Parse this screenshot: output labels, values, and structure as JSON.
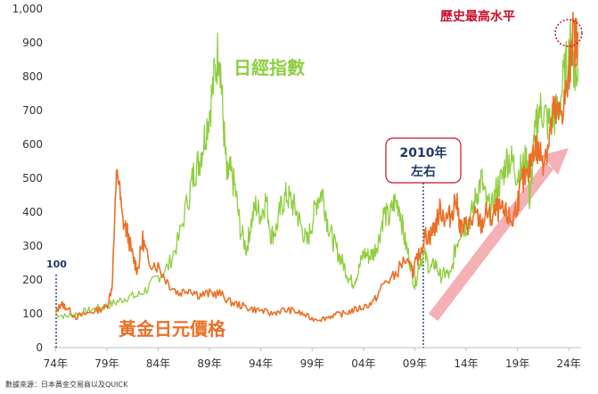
{
  "chart_data": {
    "type": "line",
    "y_ticks": [
      "0",
      "100",
      "200",
      "300",
      "400",
      "500",
      "600",
      "700",
      "800",
      "900",
      "1,000"
    ],
    "ylim": [
      0,
      1000
    ],
    "x_ticks": [
      {
        "label": "74年",
        "year": 1974
      },
      {
        "label": "79年",
        "year": 1979
      },
      {
        "label": "84年",
        "year": 1984
      },
      {
        "label": "89年",
        "year": 1989
      },
      {
        "label": "94年",
        "year": 1994
      },
      {
        "label": "99年",
        "year": 1999
      },
      {
        "label": "04年",
        "year": 2004
      },
      {
        "label": "09年",
        "year": 2009
      },
      {
        "label": "14年",
        "year": 2014
      },
      {
        "label": "19年",
        "year": 2019
      },
      {
        "label": "24年",
        "year": 2024
      }
    ],
    "xlim": [
      1973.8,
      2025.2
    ],
    "grid": false,
    "series": [
      {
        "name": "日經指數",
        "color": "#8fce3f",
        "points": [
          [
            1974.0,
            100
          ],
          [
            1975.0,
            92
          ],
          [
            1976.0,
            100
          ],
          [
            1977.0,
            108
          ],
          [
            1978.0,
            115
          ],
          [
            1979.0,
            124
          ],
          [
            1980.0,
            135
          ],
          [
            1981.0,
            150
          ],
          [
            1982.0,
            153
          ],
          [
            1983.0,
            175
          ],
          [
            1984.0,
            210
          ],
          [
            1985.0,
            240
          ],
          [
            1986.0,
            320
          ],
          [
            1987.0,
            450
          ],
          [
            1987.5,
            520
          ],
          [
            1988.0,
            550
          ],
          [
            1988.5,
            620
          ],
          [
            1989.0,
            700
          ],
          [
            1989.5,
            800
          ],
          [
            1989.95,
            900
          ],
          [
            1990.3,
            690
          ],
          [
            1990.7,
            500
          ],
          [
            1991.0,
            520
          ],
          [
            1991.5,
            470
          ],
          [
            1992.0,
            350
          ],
          [
            1992.6,
            290
          ],
          [
            1993.0,
            360
          ],
          [
            1993.5,
            420
          ],
          [
            1994.0,
            390
          ],
          [
            1994.5,
            440
          ],
          [
            1995.0,
            330
          ],
          [
            1995.5,
            350
          ],
          [
            1996.0,
            420
          ],
          [
            1996.5,
            450
          ],
          [
            1997.0,
            430
          ],
          [
            1997.5,
            400
          ],
          [
            1998.0,
            350
          ],
          [
            1998.5,
            310
          ],
          [
            1999.0,
            370
          ],
          [
            1999.5,
            440
          ],
          [
            2000.0,
            460
          ],
          [
            2000.5,
            370
          ],
          [
            2001.0,
            320
          ],
          [
            2001.5,
            280
          ],
          [
            2002.0,
            250
          ],
          [
            2002.5,
            210
          ],
          [
            2003.0,
            190
          ],
          [
            2003.5,
            225
          ],
          [
            2004.0,
            280
          ],
          [
            2004.5,
            270
          ],
          [
            2005.0,
            280
          ],
          [
            2005.5,
            320
          ],
          [
            2006.0,
            400
          ],
          [
            2006.5,
            380
          ],
          [
            2007.0,
            430
          ],
          [
            2007.5,
            420
          ],
          [
            2008.0,
            320
          ],
          [
            2008.5,
            260
          ],
          [
            2009.0,
            180
          ],
          [
            2009.5,
            260
          ],
          [
            2010.0,
            270
          ],
          [
            2010.5,
            230
          ],
          [
            2011.0,
            250
          ],
          [
            2011.5,
            210
          ],
          [
            2012.0,
            220
          ],
          [
            2012.5,
            210
          ],
          [
            2013.0,
            300
          ],
          [
            2013.5,
            350
          ],
          [
            2014.0,
            360
          ],
          [
            2014.5,
            390
          ],
          [
            2015.0,
            450
          ],
          [
            2015.5,
            500
          ],
          [
            2016.0,
            420
          ],
          [
            2016.5,
            410
          ],
          [
            2017.0,
            470
          ],
          [
            2017.5,
            500
          ],
          [
            2018.0,
            560
          ],
          [
            2018.5,
            550
          ],
          [
            2019.0,
            510
          ],
          [
            2019.5,
            530
          ],
          [
            2020.0,
            560
          ],
          [
            2020.2,
            420
          ],
          [
            2020.5,
            560
          ],
          [
            2021.0,
            700
          ],
          [
            2021.5,
            700
          ],
          [
            2022.0,
            660
          ],
          [
            2022.5,
            680
          ],
          [
            2023.0,
            700
          ],
          [
            2023.5,
            790
          ],
          [
            2024.0,
            860
          ],
          [
            2024.3,
            920
          ],
          [
            2024.6,
            800
          ],
          [
            2024.9,
            830
          ]
        ]
      },
      {
        "name": "黃金日元價格",
        "color": "#e97026",
        "points": [
          [
            1974.0,
            100
          ],
          [
            1974.5,
            130
          ],
          [
            1975.0,
            120
          ],
          [
            1976.0,
            90
          ],
          [
            1977.0,
            100
          ],
          [
            1978.0,
            110
          ],
          [
            1979.0,
            120
          ],
          [
            1979.5,
            180
          ],
          [
            1980.0,
            540
          ],
          [
            1980.5,
            380
          ],
          [
            1981.0,
            340
          ],
          [
            1981.5,
            270
          ],
          [
            1982.0,
            230
          ],
          [
            1982.5,
            320
          ],
          [
            1983.0,
            260
          ],
          [
            1984.0,
            240
          ],
          [
            1985.0,
            190
          ],
          [
            1986.0,
            160
          ],
          [
            1987.0,
            175
          ],
          [
            1988.0,
            155
          ],
          [
            1989.0,
            160
          ],
          [
            1990.0,
            160
          ],
          [
            1991.0,
            135
          ],
          [
            1992.0,
            125
          ],
          [
            1993.0,
            115
          ],
          [
            1994.0,
            110
          ],
          [
            1995.0,
            100
          ],
          [
            1996.0,
            110
          ],
          [
            1997.0,
            110
          ],
          [
            1998.0,
            100
          ],
          [
            1999.0,
            85
          ],
          [
            2000.0,
            85
          ],
          [
            2001.0,
            95
          ],
          [
            2002.0,
            100
          ],
          [
            2003.0,
            110
          ],
          [
            2004.0,
            120
          ],
          [
            2005.0,
            135
          ],
          [
            2006.0,
            190
          ],
          [
            2007.0,
            210
          ],
          [
            2008.0,
            260
          ],
          [
            2008.8,
            220
          ],
          [
            2009.0,
            240
          ],
          [
            2009.5,
            280
          ],
          [
            2010.0,
            330
          ],
          [
            2010.5,
            330
          ],
          [
            2011.0,
            360
          ],
          [
            2011.5,
            410
          ],
          [
            2012.0,
            380
          ],
          [
            2012.5,
            390
          ],
          [
            2013.0,
            440
          ],
          [
            2013.5,
            350
          ],
          [
            2014.0,
            360
          ],
          [
            2014.5,
            370
          ],
          [
            2015.0,
            390
          ],
          [
            2015.5,
            360
          ],
          [
            2016.0,
            400
          ],
          [
            2016.5,
            380
          ],
          [
            2017.0,
            410
          ],
          [
            2017.5,
            400
          ],
          [
            2018.0,
            390
          ],
          [
            2018.5,
            370
          ],
          [
            2019.0,
            430
          ],
          [
            2019.5,
            490
          ],
          [
            2020.0,
            500
          ],
          [
            2020.6,
            600
          ],
          [
            2021.0,
            580
          ],
          [
            2021.5,
            560
          ],
          [
            2022.0,
            600
          ],
          [
            2022.5,
            690
          ],
          [
            2023.0,
            680
          ],
          [
            2023.5,
            720
          ],
          [
            2024.0,
            780
          ],
          [
            2024.3,
            920
          ],
          [
            2024.7,
            900
          ],
          [
            2024.9,
            930
          ]
        ]
      }
    ],
    "annotations": {
      "record": "歷史最高水平",
      "box_line1": "2010年",
      "box_line2": "左右",
      "base": "100",
      "nikkei_label": "日經指數",
      "gold_label": "黃金日元價格"
    },
    "colors": {
      "nikkei": "#8fce3f",
      "gold": "#e97026",
      "arrow": "#f4b0b4",
      "marker": "#1f3a68",
      "record": "#c8102e"
    }
  },
  "source_note": "數據來源：日本黃金交易商以及QUICK"
}
